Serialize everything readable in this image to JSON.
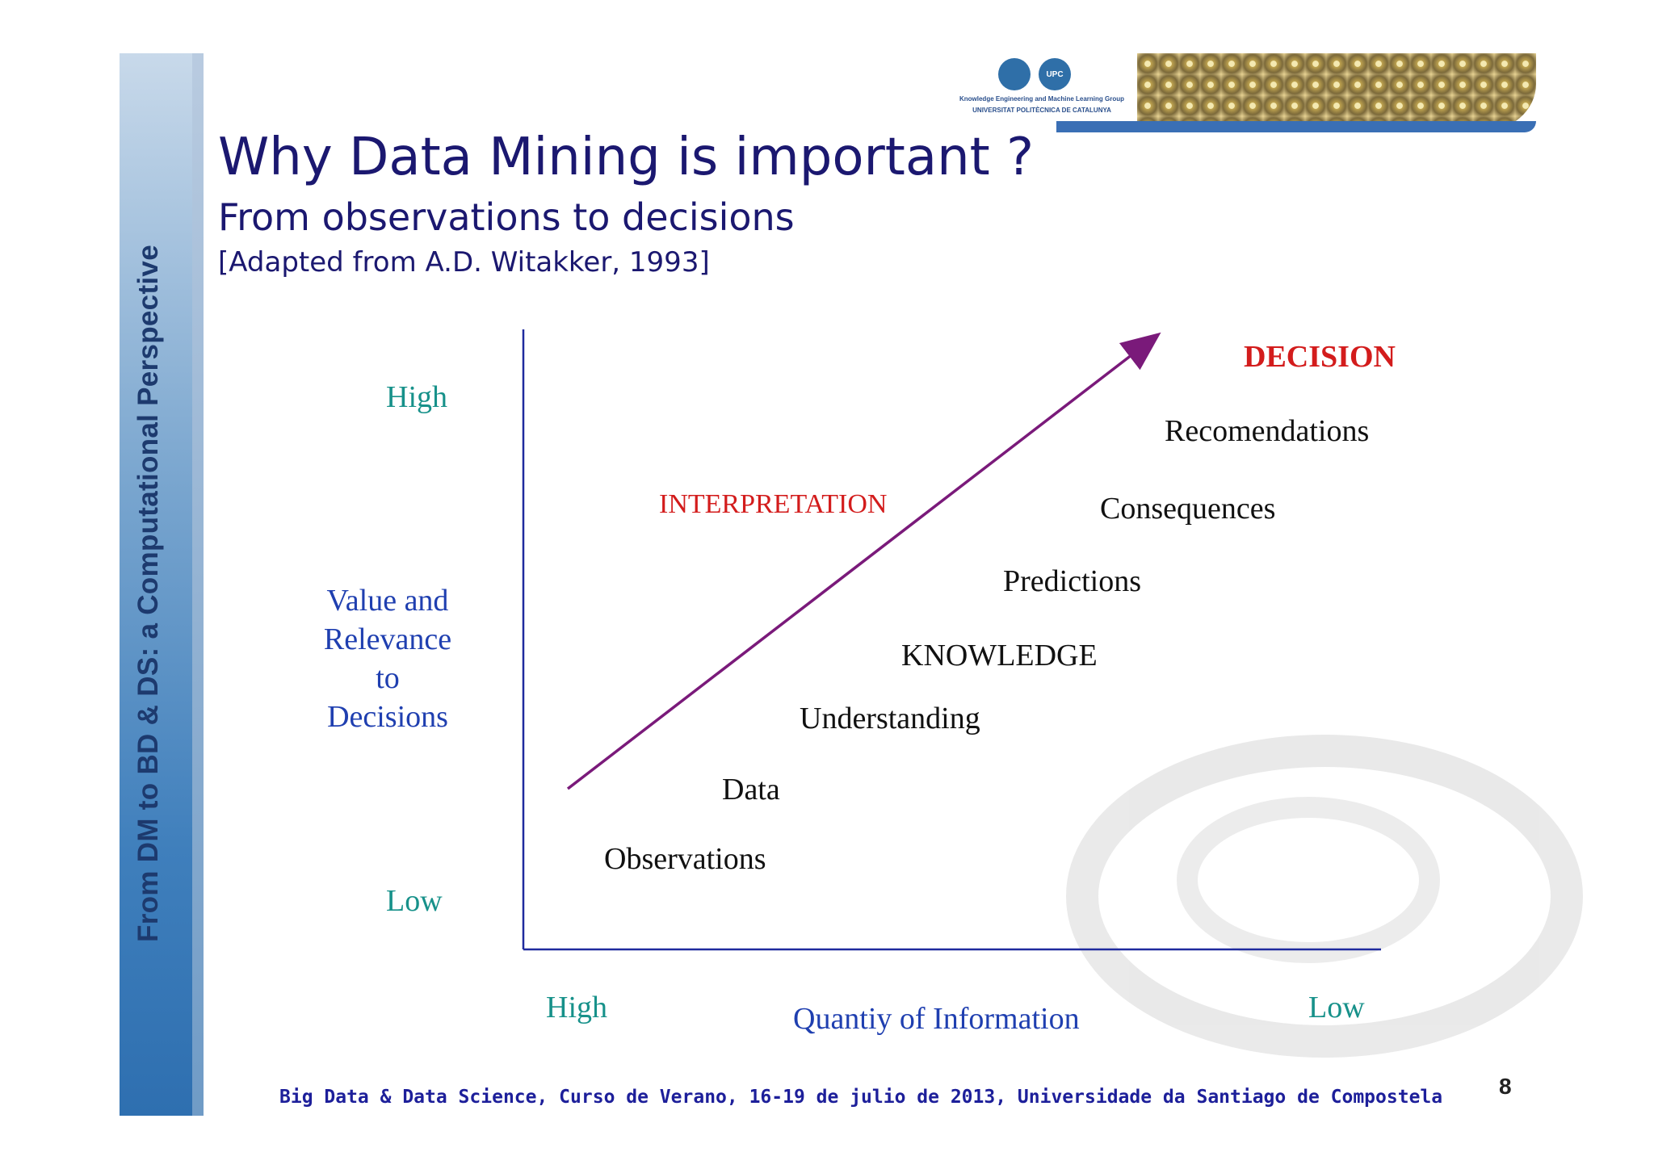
{
  "sidebar": {
    "text": "From DM to BD & DS: a Computational Perspective"
  },
  "logo": {
    "line1": "Knowledge Engineering and Machine Learning Group",
    "line2": "UNIVERSITAT POLITÈCNICA DE CATALUNYA",
    "badge": "UPC"
  },
  "header": {
    "title": "Why Data Mining is important ?",
    "subtitle": "From observations to decisions",
    "source": "[Adapted from A.D. Witakker, 1993]"
  },
  "diagram": {
    "y_high": "High",
    "y_label_lines": [
      "Value and",
      "Relevance",
      "to",
      "Decisions"
    ],
    "y_low": "Low",
    "x_high": "High",
    "x_label": "Quantiy of Information",
    "x_low": "Low",
    "interpretation": "INTERPRETATION",
    "decision": "DECISION",
    "steps": {
      "observations": "Observations",
      "data": "Data",
      "understanding": "Understanding",
      "knowledge": "KNOWLEDGE",
      "predictions": "Predictions",
      "consequences": "Consequences",
      "recomendations": "Recomendations"
    },
    "colors": {
      "axis": "#1f2a9e",
      "arrow": "#7a1a7a",
      "accent_red": "#d31c1c",
      "teal": "#17918a"
    }
  },
  "footer": {
    "text": "Big Data & Data Science, Curso de Verano, 16-19 de julio de 2013, Universidade da Santiago de Compostela",
    "page": "8"
  }
}
